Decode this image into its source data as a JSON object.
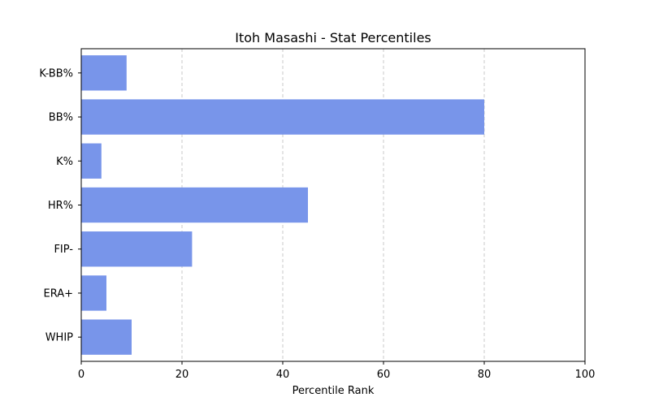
{
  "chart_data": {
    "type": "bar",
    "orientation": "horizontal",
    "title": "Itoh Masashi - Stat Percentiles",
    "xlabel": "Percentile Rank",
    "ylabel": "",
    "categories": [
      "K-BB%",
      "BB%",
      "K%",
      "HR%",
      "FIP-",
      "ERA+",
      "WHIP"
    ],
    "values": [
      9,
      80,
      4,
      45,
      22,
      5,
      10
    ],
    "xlim": [
      0,
      100
    ],
    "xticks": [
      0,
      20,
      40,
      60,
      80,
      100
    ],
    "grid": "x-dashed",
    "bar_color": "#7895ea",
    "grid_color": "#c8c8c8"
  }
}
